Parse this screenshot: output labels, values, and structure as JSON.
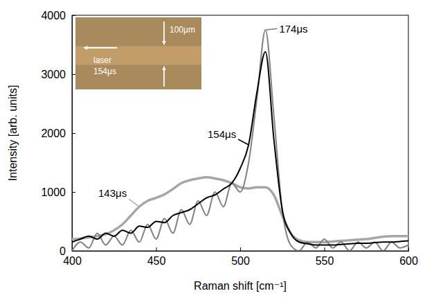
{
  "chart_data": {
    "type": "line",
    "x_label": "Raman shift [cm⁻¹]",
    "y_label": "Intensity [arb. units]",
    "x": [
      400,
      405,
      410,
      415,
      420,
      425,
      430,
      435,
      440,
      445,
      450,
      455,
      460,
      465,
      470,
      475,
      480,
      485,
      490,
      495,
      500,
      505,
      510,
      515,
      520,
      525,
      530,
      535,
      540,
      545,
      550,
      555,
      560,
      565,
      570,
      575,
      580,
      585,
      590,
      595,
      600
    ],
    "series": [
      {
        "name": "143μs",
        "color": "#a6a6a6",
        "values": [
          200,
          210,
          230,
          250,
          280,
          350,
          450,
          600,
          750,
          850,
          900,
          960,
          1050,
          1150,
          1200,
          1230,
          1250,
          1230,
          1200,
          1150,
          1080,
          1060,
          1080,
          1080,
          950,
          600,
          300,
          180,
          150,
          150,
          150,
          160,
          170,
          180,
          190,
          200,
          220,
          240,
          250,
          250,
          250
        ]
      },
      {
        "name": "154μs",
        "color": "#000000",
        "values": [
          150,
          200,
          250,
          200,
          300,
          250,
          350,
          300,
          420,
          400,
          500,
          480,
          600,
          650,
          700,
          800,
          900,
          950,
          1050,
          1150,
          1400,
          1800,
          2700,
          3380,
          1900,
          700,
          300,
          150,
          120,
          100,
          100,
          100,
          110,
          120,
          130,
          130,
          140,
          150,
          150,
          160,
          170
        ]
      },
      {
        "name": "174μs",
        "color": "#808080",
        "values": [
          0,
          150,
          50,
          300,
          100,
          250,
          100,
          350,
          150,
          450,
          200,
          550,
          300,
          700,
          450,
          850,
          600,
          1000,
          750,
          1150,
          1000,
          1500,
          2600,
          3750,
          2300,
          700,
          100,
          0,
          150,
          50,
          200,
          50,
          150,
          0,
          150,
          50,
          150,
          0,
          150,
          50,
          100
        ]
      }
    ],
    "xlim": [
      400,
      600
    ],
    "ylim": [
      0,
      4000
    ],
    "xticks": [
      400,
      450,
      500,
      550,
      600
    ],
    "yticks": [
      0,
      1000,
      2000,
      3000,
      4000
    ],
    "inset_texts": [
      "100μm",
      "laser",
      "154μs"
    ]
  }
}
